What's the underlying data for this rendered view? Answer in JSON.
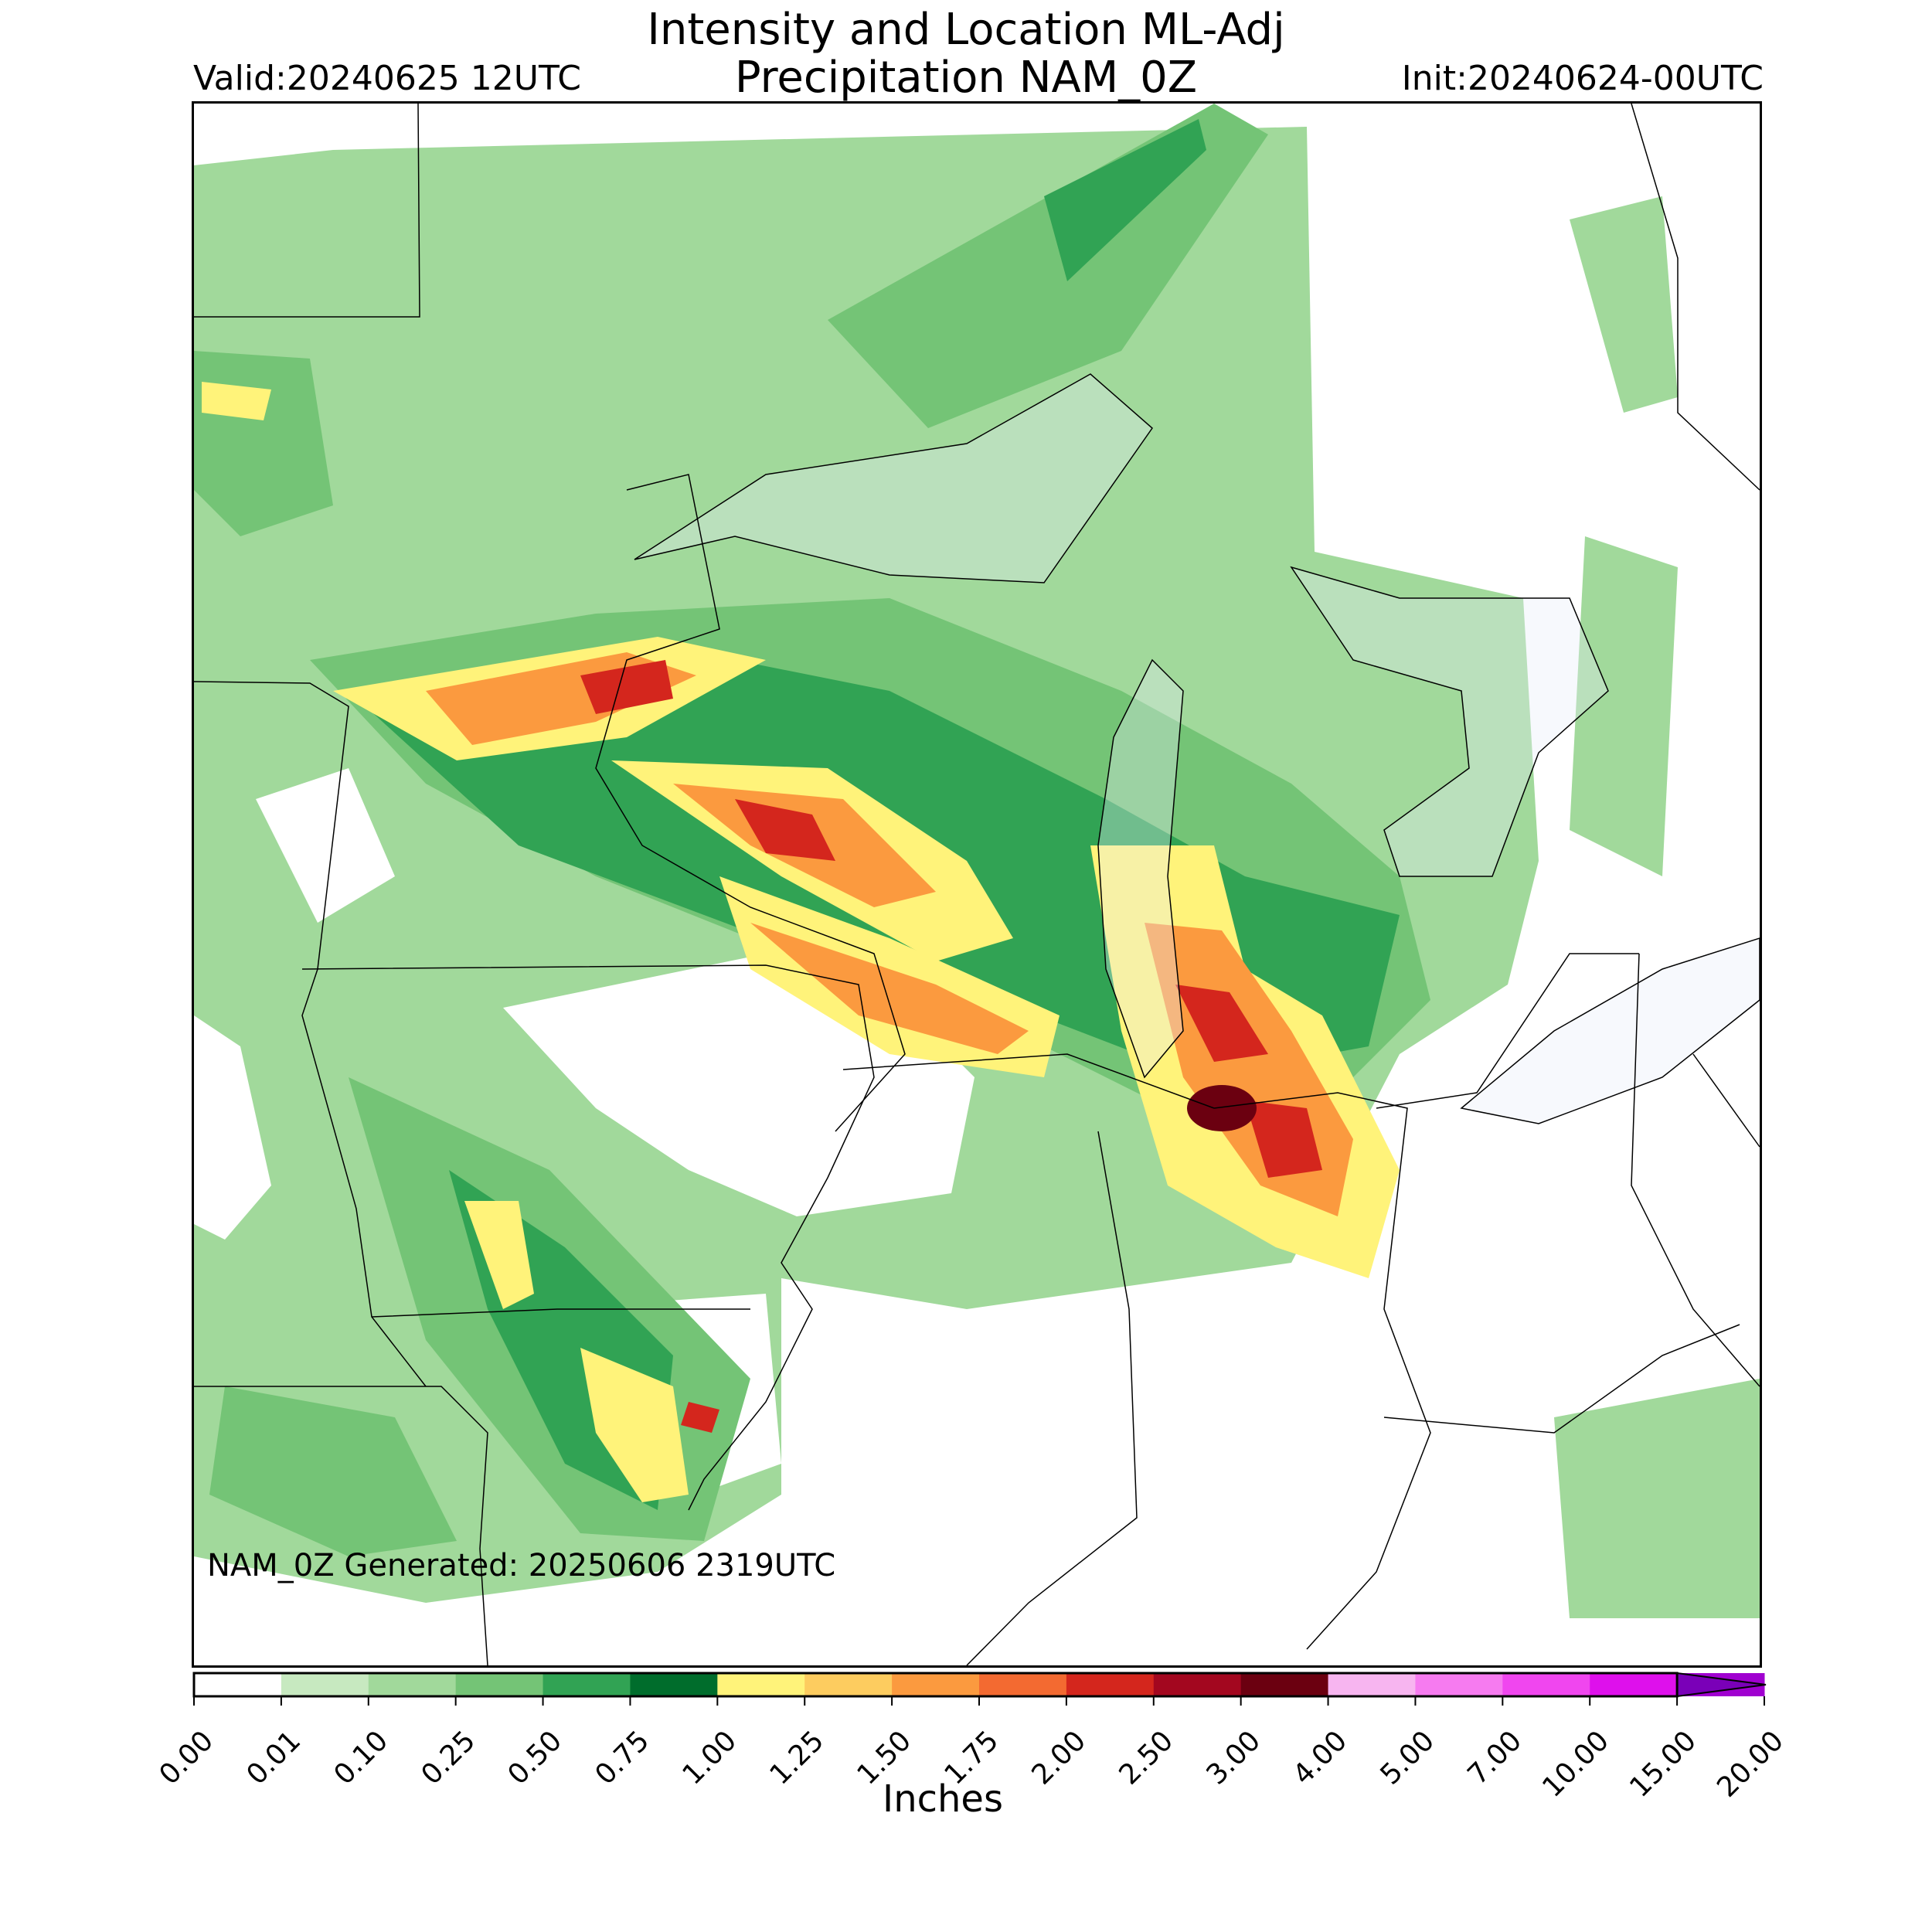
{
  "header": {
    "title_line1": "Intensity and Location ML-Adj",
    "title_line2": "Precipitation NAM_0Z",
    "valid": "Valid:20240625 12UTC",
    "init": "Init:20240624-00UTC"
  },
  "footnote": "NAM_0Z Generated: 20250606 2319UTC",
  "colorbar": {
    "label": "Inches",
    "ticks": [
      "0.00",
      "0.01",
      "0.10",
      "0.25",
      "0.50",
      "0.75",
      "1.00",
      "1.25",
      "1.50",
      "1.75",
      "2.00",
      "2.50",
      "3.00",
      "4.00",
      "5.00",
      "7.00",
      "10.00",
      "15.00",
      "20.00"
    ],
    "colors": [
      "#ffffff",
      "#c7e9c0",
      "#a1d99b",
      "#74c476",
      "#31a354",
      "#006d2c",
      "#fff37a",
      "#fdcc5f",
      "#fb9a3f",
      "#f36a31",
      "#d4261d",
      "#a3071f",
      "#6b0010",
      "#f7b5f0",
      "#f67bf0",
      "#f046ef",
      "#de10ec",
      "#a000d0"
    ],
    "extend_color": "#7a00b8"
  },
  "map": {
    "background": "#ffffff",
    "water_color": "#e8eff8",
    "border_color": "#000000"
  }
}
